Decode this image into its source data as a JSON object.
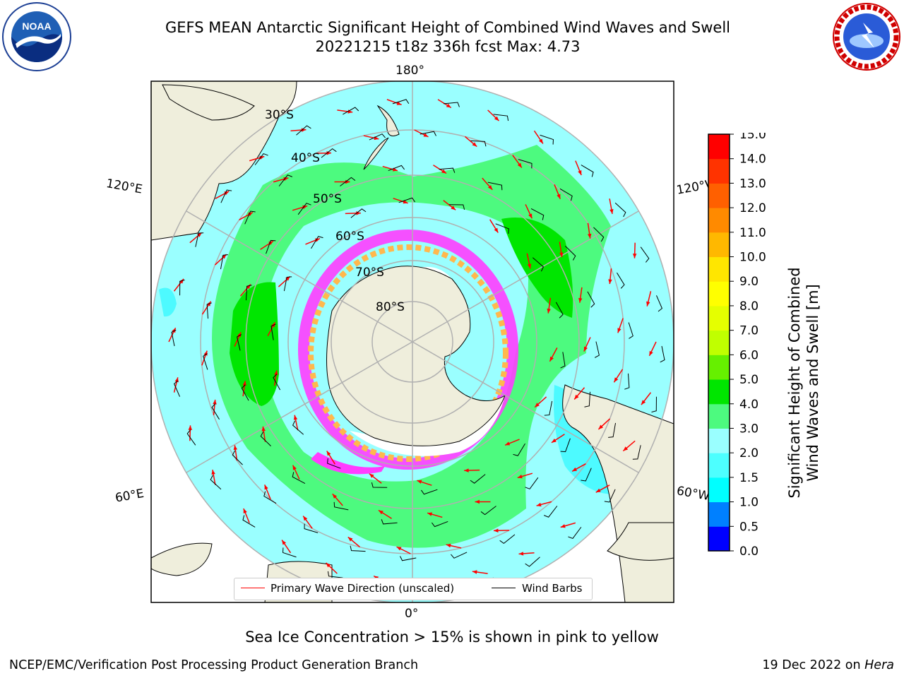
{
  "header": {
    "title_line1": "GEFS MEAN Antarctic Significant Height of Combined Wind Waves and Swell",
    "title_line2": "20221215 t18z 336h fcst   Max: 4.73"
  },
  "logos": {
    "left": "NOAA",
    "right": "NATIONAL WEATHER SERVICE"
  },
  "map": {
    "longitude_labels": {
      "top": "180°",
      "bottom": "0°",
      "left_upper": "120°E",
      "left_lower": "60°E",
      "right_upper": "120°W",
      "right_lower": "60°W"
    },
    "latitude_labels": [
      "30°S",
      "40°S",
      "50°S",
      "60°S",
      "70°S",
      "80°S"
    ],
    "colors": {
      "land": "#efeedc",
      "ocean_1": "#9affff",
      "ocean_2": "#4dfa7f",
      "ocean_3": "#00e600",
      "ocean_0": "#4dfaff",
      "ice_pink": "#ff3dff",
      "ice_orange": "#ffb84d",
      "graticule": "#b0b0b0",
      "wave_arrow": "#ff0000",
      "wind_barb": "#000000"
    }
  },
  "legend": {
    "items": [
      {
        "label": "Primary Wave Direction (unscaled)",
        "color": "#ff0000"
      },
      {
        "label": "Wind Barbs",
        "color": "#000000"
      }
    ]
  },
  "colorbar": {
    "title_line1": "Significant Height of Combined",
    "title_line2": "Wind Waves and Swell [m]",
    "ticks": [
      "0.0",
      "0.5",
      "1.0",
      "1.5",
      "2.0",
      "3.0",
      "4.0",
      "5.0",
      "6.0",
      "7.0",
      "8.0",
      "9.0",
      "10.0",
      "11.0",
      "12.0",
      "13.0",
      "14.0",
      "15.0"
    ],
    "colors": [
      "#0000ff",
      "#0080ff",
      "#00ffff",
      "#4dffff",
      "#9affff",
      "#4dfa7f",
      "#00e600",
      "#66f000",
      "#c0ff00",
      "#e5ff00",
      "#ffff00",
      "#ffe600",
      "#ffb800",
      "#ff8a00",
      "#ff6000",
      "#ff3300",
      "#ff0000"
    ]
  },
  "note": "Sea Ice Concentration > 15% is shown in pink to yellow",
  "footer": {
    "left": "NCEP/EMC/Verification Post Processing Product Generation Branch",
    "date": "19 Dec 2022 on ",
    "machine": "Hera"
  }
}
